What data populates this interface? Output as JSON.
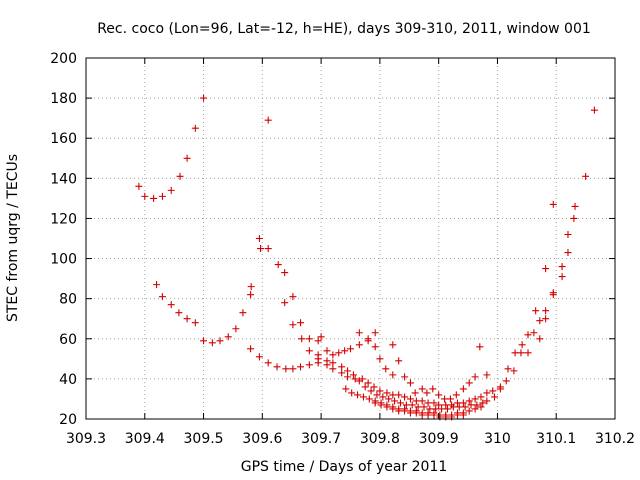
{
  "chart_data": {
    "type": "scatter",
    "title": "Rec. coco (Lon=96, Lat=-12, h=HE), days 309-310, 2011, window 001",
    "xlabel": "GPS time / Days of year 2011",
    "ylabel": "STEC from uqrg / TECUs",
    "xlim": [
      309.3,
      310.2
    ],
    "ylim": [
      20,
      200
    ],
    "x_ticks": [
      "309.3",
      "309.4",
      "309.5",
      "309.6",
      "309.7",
      "309.8",
      "309.9",
      "310",
      "310.1",
      "310.2"
    ],
    "y_ticks": [
      "20",
      "40",
      "60",
      "80",
      "100",
      "120",
      "140",
      "160",
      "180",
      "200"
    ],
    "grid": true,
    "marker": "+",
    "color": "#d40000",
    "series": [
      {
        "points": [
          [
            309.39,
            136
          ],
          [
            309.4,
            131
          ],
          [
            309.415,
            130
          ],
          [
            309.43,
            131
          ],
          [
            309.445,
            134
          ],
          [
            309.46,
            141
          ],
          [
            309.472,
            150
          ],
          [
            309.486,
            165
          ],
          [
            309.5,
            180
          ],
          [
            309.42,
            87
          ],
          [
            309.43,
            81
          ],
          [
            309.445,
            77
          ],
          [
            309.458,
            73
          ],
          [
            309.472,
            70
          ],
          [
            309.486,
            68
          ],
          [
            309.5,
            59
          ],
          [
            309.515,
            58
          ],
          [
            309.528,
            59
          ],
          [
            309.542,
            61
          ],
          [
            309.555,
            65
          ],
          [
            309.567,
            73
          ],
          [
            309.58,
            82
          ],
          [
            309.581,
            86
          ],
          [
            309.595,
            110
          ],
          [
            309.597,
            105
          ],
          [
            309.61,
            105
          ],
          [
            309.61,
            169
          ],
          [
            309.627,
            97
          ],
          [
            309.638,
            93
          ],
          [
            309.638,
            78
          ],
          [
            309.652,
            81
          ],
          [
            309.652,
            67
          ],
          [
            309.665,
            68
          ],
          [
            309.667,
            60
          ],
          [
            309.68,
            60
          ],
          [
            309.68,
            54
          ],
          [
            309.695,
            59
          ],
          [
            309.695,
            52
          ],
          [
            309.7,
            61
          ],
          [
            309.71,
            54
          ],
          [
            309.72,
            52
          ],
          [
            309.73,
            53
          ],
          [
            309.74,
            54
          ],
          [
            309.75,
            55
          ],
          [
            309.765,
            63
          ],
          [
            309.765,
            57
          ],
          [
            309.78,
            59
          ],
          [
            309.78,
            60
          ],
          [
            309.792,
            63
          ],
          [
            309.792,
            56
          ],
          [
            309.8,
            50
          ],
          [
            309.81,
            45
          ],
          [
            309.822,
            57
          ],
          [
            309.822,
            42
          ],
          [
            309.832,
            49
          ],
          [
            309.842,
            41
          ],
          [
            309.852,
            38
          ],
          [
            309.86,
            33
          ],
          [
            309.872,
            35
          ],
          [
            309.88,
            33
          ],
          [
            309.89,
            35
          ],
          [
            309.9,
            32
          ],
          [
            309.91,
            30
          ],
          [
            309.92,
            30
          ],
          [
            309.93,
            32
          ],
          [
            309.942,
            35
          ],
          [
            309.952,
            38
          ],
          [
            309.962,
            41
          ],
          [
            309.97,
            56
          ],
          [
            309.982,
            42
          ],
          [
            309.58,
            55
          ],
          [
            309.595,
            51
          ],
          [
            309.61,
            48
          ],
          [
            309.625,
            46
          ],
          [
            309.64,
            45
          ],
          [
            309.652,
            45
          ],
          [
            309.665,
            46
          ],
          [
            309.68,
            47
          ],
          [
            309.695,
            48
          ],
          [
            309.71,
            47
          ],
          [
            309.72,
            45
          ],
          [
            309.735,
            43
          ],
          [
            309.745,
            41
          ],
          [
            309.758,
            40
          ],
          [
            309.77,
            40
          ],
          [
            309.78,
            38
          ],
          [
            309.79,
            36
          ],
          [
            309.8,
            34
          ],
          [
            309.812,
            33
          ],
          [
            309.822,
            32
          ],
          [
            309.832,
            32
          ],
          [
            309.842,
            31
          ],
          [
            309.852,
            30
          ],
          [
            309.862,
            29
          ],
          [
            309.872,
            29
          ],
          [
            309.882,
            28
          ],
          [
            309.892,
            28
          ],
          [
            309.9,
            27
          ],
          [
            309.912,
            27
          ],
          [
            309.922,
            27
          ],
          [
            309.932,
            28
          ],
          [
            309.942,
            28
          ],
          [
            309.952,
            29
          ],
          [
            309.962,
            30
          ],
          [
            309.972,
            31
          ],
          [
            309.982,
            33
          ],
          [
            309.992,
            34
          ],
          [
            309.695,
            50
          ],
          [
            309.71,
            49
          ],
          [
            309.72,
            48
          ],
          [
            309.735,
            46
          ],
          [
            309.745,
            44
          ],
          [
            309.755,
            42
          ],
          [
            309.765,
            39
          ],
          [
            309.775,
            36
          ],
          [
            309.785,
            34
          ],
          [
            309.795,
            32
          ],
          [
            309.805,
            31
          ],
          [
            309.815,
            30
          ],
          [
            309.825,
            29
          ],
          [
            309.835,
            28
          ],
          [
            309.845,
            27
          ],
          [
            309.855,
            27
          ],
          [
            309.865,
            26
          ],
          [
            309.875,
            26
          ],
          [
            309.885,
            25
          ],
          [
            309.895,
            25
          ],
          [
            309.905,
            25
          ],
          [
            309.915,
            25
          ],
          [
            309.925,
            26
          ],
          [
            309.935,
            26
          ],
          [
            309.945,
            26
          ],
          [
            309.955,
            27
          ],
          [
            309.965,
            27
          ],
          [
            309.975,
            28
          ],
          [
            309.742,
            35
          ],
          [
            309.752,
            33
          ],
          [
            309.762,
            32
          ],
          [
            309.772,
            31
          ],
          [
            309.782,
            30
          ],
          [
            309.792,
            29
          ],
          [
            309.802,
            28
          ],
          [
            309.812,
            27
          ],
          [
            309.822,
            26
          ],
          [
            309.832,
            25
          ],
          [
            309.842,
            25
          ],
          [
            309.852,
            24
          ],
          [
            309.862,
            24
          ],
          [
            309.872,
            23
          ],
          [
            309.882,
            23
          ],
          [
            309.892,
            23
          ],
          [
            309.902,
            22
          ],
          [
            309.912,
            22
          ],
          [
            309.922,
            22
          ],
          [
            309.932,
            23
          ],
          [
            309.942,
            23
          ],
          [
            309.952,
            24
          ],
          [
            309.962,
            25
          ],
          [
            309.972,
            26
          ],
          [
            309.792,
            28
          ],
          [
            309.802,
            27
          ],
          [
            309.812,
            26
          ],
          [
            309.822,
            25
          ],
          [
            309.832,
            24
          ],
          [
            309.842,
            24
          ],
          [
            309.852,
            23
          ],
          [
            309.862,
            23
          ],
          [
            309.872,
            22
          ],
          [
            309.882,
            22
          ],
          [
            309.892,
            22
          ],
          [
            309.902,
            21
          ],
          [
            309.912,
            21
          ],
          [
            309.922,
            21
          ],
          [
            309.932,
            22
          ],
          [
            309.942,
            22
          ],
          [
            309.982,
            29
          ],
          [
            309.995,
            31
          ],
          [
            310.005,
            35
          ],
          [
            310.005,
            36
          ],
          [
            310.015,
            39
          ],
          [
            310.018,
            45
          ],
          [
            310.028,
            44
          ],
          [
            310.03,
            53
          ],
          [
            310.04,
            53
          ],
          [
            310.042,
            57
          ],
          [
            310.052,
            53
          ],
          [
            310.052,
            62
          ],
          [
            310.062,
            63
          ],
          [
            310.065,
            74
          ],
          [
            310.072,
            60
          ],
          [
            310.072,
            69
          ],
          [
            310.082,
            95
          ],
          [
            310.082,
            74
          ],
          [
            310.082,
            70
          ],
          [
            310.095,
            82
          ],
          [
            310.095,
            83
          ],
          [
            310.095,
            127
          ],
          [
            310.11,
            96
          ],
          [
            310.11,
            91
          ],
          [
            310.12,
            103
          ],
          [
            310.12,
            112
          ],
          [
            310.13,
            120
          ],
          [
            310.132,
            126
          ],
          [
            310.15,
            141
          ],
          [
            310.165,
            174
          ]
        ]
      }
    ]
  }
}
